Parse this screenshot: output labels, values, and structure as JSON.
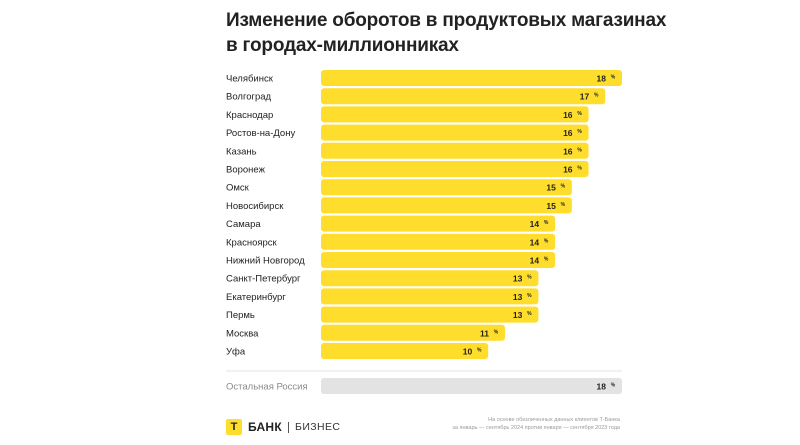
{
  "title": {
    "line1": "Изменение оборотов в продуктовых магазинах",
    "line2": "в городах-миллионниках"
  },
  "chart_data": {
    "type": "bar",
    "orientation": "horizontal",
    "title": "Изменение оборотов в продуктовых магазинах в городах-миллионниках",
    "categories": [
      "Челябинск",
      "Волгоград",
      "Краснодар",
      "Ростов-на-Дону",
      "Казань",
      "Воронеж",
      "Омск",
      "Новосибирск",
      "Самара",
      "Красноярск",
      "Нижний Новгород",
      "Санкт-Петербург",
      "Екатеринбург",
      "Пермь",
      "Москва",
      "Уфа"
    ],
    "values": [
      18,
      17,
      16,
      16,
      16,
      16,
      15,
      15,
      14,
      14,
      14,
      13,
      13,
      13,
      11,
      10
    ],
    "value_suffix": "%",
    "bar_color": "#ffdd2d",
    "comparison": {
      "label": "Остальная Россия",
      "value": 18,
      "color": "#e3e3e3"
    },
    "xlim": [
      0,
      18
    ],
    "grid": false,
    "legend": "none"
  },
  "footer": {
    "logo_letter": "Т",
    "logo_bank": "БАНК",
    "logo_business": "БИЗНЕС",
    "source_line1": "На основе обезличенных данных клиентов Т-Банка",
    "source_line2": "за январь — сентябрь 2024 против января — сентября 2023 года"
  }
}
